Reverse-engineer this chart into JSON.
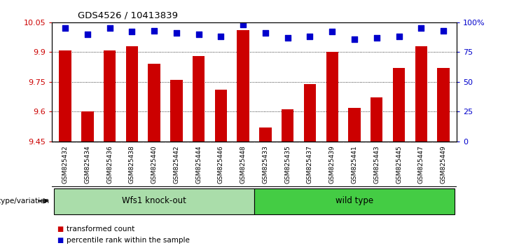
{
  "title": "GDS4526 / 10413839",
  "samples": [
    "GSM825432",
    "GSM825434",
    "GSM825436",
    "GSM825438",
    "GSM825440",
    "GSM825442",
    "GSM825444",
    "GSM825446",
    "GSM825448",
    "GSM825433",
    "GSM825435",
    "GSM825437",
    "GSM825439",
    "GSM825441",
    "GSM825443",
    "GSM825445",
    "GSM825447",
    "GSM825449"
  ],
  "transformed_counts": [
    9.91,
    9.6,
    9.91,
    9.93,
    9.84,
    9.76,
    9.88,
    9.71,
    10.01,
    9.52,
    9.61,
    9.74,
    9.9,
    9.62,
    9.67,
    9.82,
    9.93,
    9.82
  ],
  "percentile_ranks": [
    95,
    90,
    95,
    92,
    93,
    91,
    90,
    88,
    98,
    91,
    87,
    88,
    92,
    86,
    87,
    88,
    95,
    93
  ],
  "ylim_left": [
    9.45,
    10.05
  ],
  "ylim_right": [
    0,
    100
  ],
  "yticks_left": [
    9.45,
    9.6,
    9.75,
    9.9,
    10.05
  ],
  "yticks_right": [
    0,
    25,
    50,
    75,
    100
  ],
  "ytick_labels_left": [
    "9.45",
    "9.6",
    "9.75",
    "9.9",
    "10.05"
  ],
  "ytick_labels_right": [
    "0",
    "25",
    "50",
    "75",
    "100%"
  ],
  "bar_color": "#cc0000",
  "dot_color": "#0000cc",
  "group1_label": "Wfs1 knock-out",
  "group2_label": "wild type",
  "group1_color": "#aaddaa",
  "group2_color": "#44cc44",
  "group1_count": 9,
  "group2_count": 9,
  "legend_bar": "transformed count",
  "legend_dot": "percentile rank within the sample",
  "xlabel_left": "genotype/variation",
  "bar_width": 0.55,
  "dot_size": 40,
  "dot_marker": "s",
  "background_color": "#ffffff",
  "plot_bg": "#ffffff",
  "grid_color": "#000000",
  "tick_color_left": "#cc0000",
  "tick_color_right": "#0000cc",
  "xtick_bg": "#d8d8d8",
  "separator_color": "#ffffff"
}
